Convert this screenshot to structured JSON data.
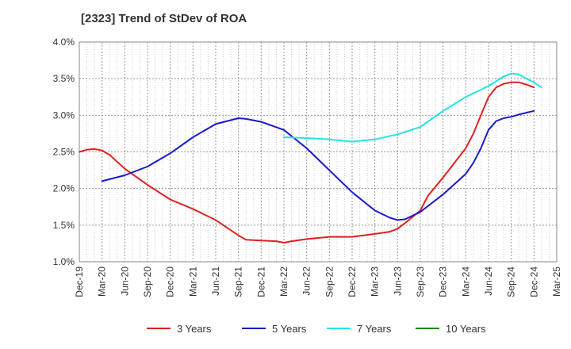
{
  "chart_data": {
    "type": "line",
    "title": "[2323]  Trend of StDev of ROA",
    "xlabel": "",
    "ylabel": "",
    "x_ticks": [
      "Dec-19",
      "Mar-20",
      "Jun-20",
      "Sep-20",
      "Dec-20",
      "Mar-21",
      "Jun-21",
      "Sep-21",
      "Dec-21",
      "Mar-22",
      "Jun-22",
      "Sep-22",
      "Dec-22",
      "Mar-23",
      "Jun-23",
      "Sep-23",
      "Dec-23",
      "Mar-24",
      "Jun-24",
      "Sep-24",
      "Dec-24",
      "Mar-25"
    ],
    "y_ticks": [
      "1.0%",
      "1.5%",
      "2.0%",
      "2.5%",
      "3.0%",
      "3.5%",
      "4.0%"
    ],
    "ylim": [
      1.0,
      4.0
    ],
    "grid": true,
    "legend_position": "bottom",
    "series": [
      {
        "name": "3 Years",
        "color": "#e02020",
        "points": [
          [
            "Dec-19",
            2.5
          ],
          [
            "Jan-20",
            2.53
          ],
          [
            "Feb-20",
            2.54
          ],
          [
            "Mar-20",
            2.52
          ],
          [
            "Apr-20",
            2.46
          ],
          [
            "Jun-20",
            2.27
          ],
          [
            "Sep-20",
            2.05
          ],
          [
            "Dec-20",
            1.85
          ],
          [
            "Mar-21",
            1.72
          ],
          [
            "Jun-21",
            1.57
          ],
          [
            "Sep-21",
            1.36
          ],
          [
            "Oct-21",
            1.3
          ],
          [
            "Dec-21",
            1.29
          ],
          [
            "Feb-22",
            1.28
          ],
          [
            "Mar-22",
            1.26
          ],
          [
            "Apr-22",
            1.28
          ],
          [
            "Jun-22",
            1.31
          ],
          [
            "Sep-22",
            1.34
          ],
          [
            "Dec-22",
            1.34
          ],
          [
            "Mar-23",
            1.38
          ],
          [
            "May-23",
            1.41
          ],
          [
            "Jun-23",
            1.45
          ],
          [
            "Jul-23",
            1.53
          ],
          [
            "Sep-23",
            1.7
          ],
          [
            "Oct-23",
            1.9
          ],
          [
            "Dec-23",
            2.15
          ],
          [
            "Mar-24",
            2.55
          ],
          [
            "Apr-24",
            2.75
          ],
          [
            "May-24",
            3.0
          ],
          [
            "Jun-24",
            3.25
          ],
          [
            "Jul-24",
            3.38
          ],
          [
            "Aug-24",
            3.43
          ],
          [
            "Sep-24",
            3.45
          ],
          [
            "Oct-24",
            3.45
          ],
          [
            "Nov-24",
            3.42
          ],
          [
            "Dec-24",
            3.38
          ]
        ]
      },
      {
        "name": "5 Years",
        "color": "#1a1acc",
        "points": [
          [
            "Mar-20",
            2.1
          ],
          [
            "Jun-20",
            2.18
          ],
          [
            "Sep-20",
            2.3
          ],
          [
            "Dec-20",
            2.48
          ],
          [
            "Mar-21",
            2.7
          ],
          [
            "Jun-21",
            2.88
          ],
          [
            "Sep-21",
            2.96
          ],
          [
            "Oct-21",
            2.95
          ],
          [
            "Dec-21",
            2.91
          ],
          [
            "Mar-22",
            2.8
          ],
          [
            "Jun-22",
            2.55
          ],
          [
            "Sep-22",
            2.25
          ],
          [
            "Dec-22",
            1.95
          ],
          [
            "Mar-23",
            1.7
          ],
          [
            "May-23",
            1.6
          ],
          [
            "Jun-23",
            1.57
          ],
          [
            "Jul-23",
            1.58
          ],
          [
            "Sep-23",
            1.68
          ],
          [
            "Dec-23",
            1.92
          ],
          [
            "Mar-24",
            2.2
          ],
          [
            "Apr-24",
            2.35
          ],
          [
            "May-24",
            2.55
          ],
          [
            "Jun-24",
            2.8
          ],
          [
            "Jul-24",
            2.92
          ],
          [
            "Aug-24",
            2.96
          ],
          [
            "Sep-24",
            2.98
          ],
          [
            "Oct-24",
            3.01
          ],
          [
            "Dec-24",
            3.06
          ]
        ]
      },
      {
        "name": "7 Years",
        "color": "#22e5e5",
        "points": [
          [
            "Mar-22",
            2.7
          ],
          [
            "Jun-22",
            2.69
          ],
          [
            "Sep-22",
            2.67
          ],
          [
            "Dec-22",
            2.64
          ],
          [
            "Mar-23",
            2.67
          ],
          [
            "Jun-23",
            2.74
          ],
          [
            "Sep-23",
            2.84
          ],
          [
            "Dec-23",
            3.06
          ],
          [
            "Mar-24",
            3.25
          ],
          [
            "Jun-24",
            3.4
          ],
          [
            "Aug-24",
            3.53
          ],
          [
            "Sep-24",
            3.57
          ],
          [
            "Oct-24",
            3.56
          ],
          [
            "Nov-24",
            3.5
          ],
          [
            "Dec-24",
            3.45
          ],
          [
            "Jan-25",
            3.38
          ]
        ]
      },
      {
        "name": "10 Years",
        "color": "#1a8a1a",
        "points": []
      }
    ]
  }
}
